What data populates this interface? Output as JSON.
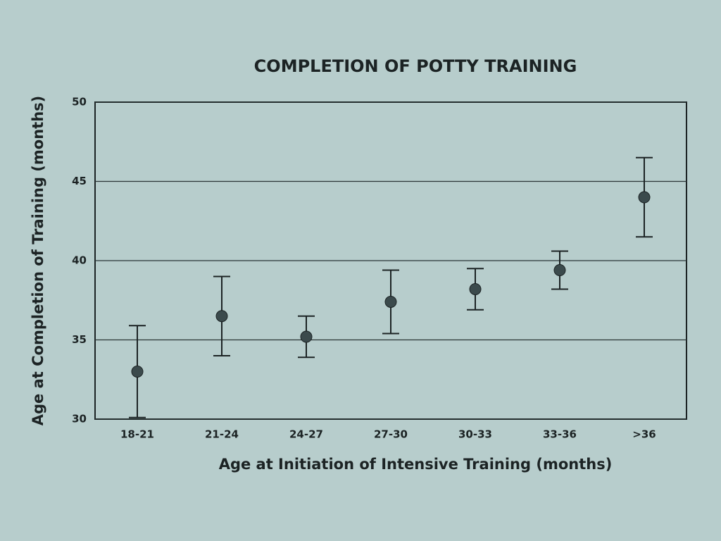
{
  "chart_data": {
    "type": "errorbar",
    "title": "COMPLETION OF POTTY TRAINING",
    "x_label": "Age at Initiation of Intensive Training (months)",
    "y_label": "Age at Completion of Training (months)",
    "categories": [
      "18-21",
      "21-24",
      "24-27",
      "27-30",
      "30-33",
      "33-36",
      ">36"
    ],
    "values": [
      33,
      36.5,
      35.2,
      37.4,
      38.2,
      39.4,
      44
    ],
    "errors": [
      2.9,
      2.5,
      1.3,
      2,
      1.3,
      1.2,
      2.5
    ],
    "color": "#3b4a4c",
    "ylim": [
      30,
      50
    ],
    "yticks": [
      30,
      35,
      40,
      45,
      50
    ],
    "grid": true
  }
}
